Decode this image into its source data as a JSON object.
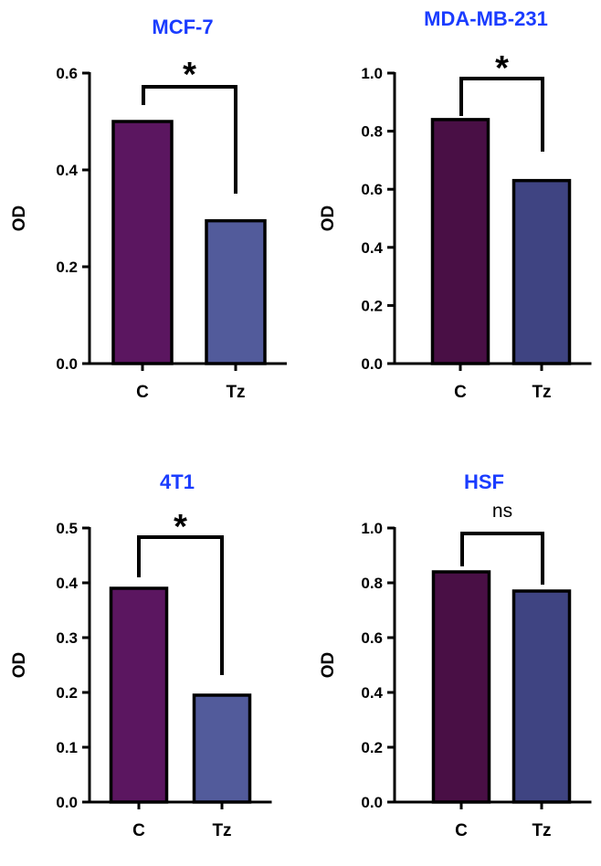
{
  "colors": {
    "title": "#1a3cff",
    "axis": "#000000",
    "bar_outline": "#000000",
    "panels": [
      [
        "#5b1660",
        "#525b9b"
      ],
      [
        "#490f45",
        "#3f4482"
      ],
      [
        "#5b1660",
        "#525b9b"
      ],
      [
        "#490f45",
        "#3f4482"
      ]
    ]
  },
  "chart_data": [
    {
      "type": "bar",
      "title": "MCF-7",
      "ylabel": "OD",
      "xlabel": "",
      "categories": [
        "C",
        "Tz"
      ],
      "values": [
        0.5,
        0.295
      ],
      "ylim": [
        0,
        0.6
      ],
      "yticks": [
        0.0,
        0.2,
        0.4,
        0.6
      ],
      "ytick_labels": [
        "0.0",
        "0.2",
        "0.4",
        "0.6"
      ],
      "significance": "*"
    },
    {
      "type": "bar",
      "title": "MDA-MB-231",
      "ylabel": "OD",
      "xlabel": "",
      "categories": [
        "C",
        "Tz"
      ],
      "values": [
        0.84,
        0.63
      ],
      "ylim": [
        0,
        1.0
      ],
      "yticks": [
        0.0,
        0.2,
        0.4,
        0.6,
        0.8,
        1.0
      ],
      "ytick_labels": [
        "0.0",
        "0.2",
        "0.4",
        "0.6",
        "0.8",
        "1.0"
      ],
      "significance": "*"
    },
    {
      "type": "bar",
      "title": "4T1",
      "ylabel": "OD",
      "xlabel": "",
      "categories": [
        "C",
        "Tz"
      ],
      "values": [
        0.39,
        0.195
      ],
      "ylim": [
        0,
        0.5
      ],
      "yticks": [
        0.0,
        0.1,
        0.2,
        0.3,
        0.4,
        0.5
      ],
      "ytick_labels": [
        "0.0",
        "0.1",
        "0.2",
        "0.3",
        "0.4",
        "0.5"
      ],
      "significance": "*"
    },
    {
      "type": "bar",
      "title": "HSF",
      "ylabel": "OD",
      "xlabel": "",
      "categories": [
        "C",
        "Tz"
      ],
      "values": [
        0.84,
        0.77
      ],
      "ylim": [
        0,
        1.0
      ],
      "yticks": [
        0.0,
        0.2,
        0.4,
        0.6,
        0.8,
        1.0
      ],
      "ytick_labels": [
        "0.0",
        "0.2",
        "0.4",
        "0.6",
        "0.8",
        "1.0"
      ],
      "significance": "ns"
    }
  ]
}
